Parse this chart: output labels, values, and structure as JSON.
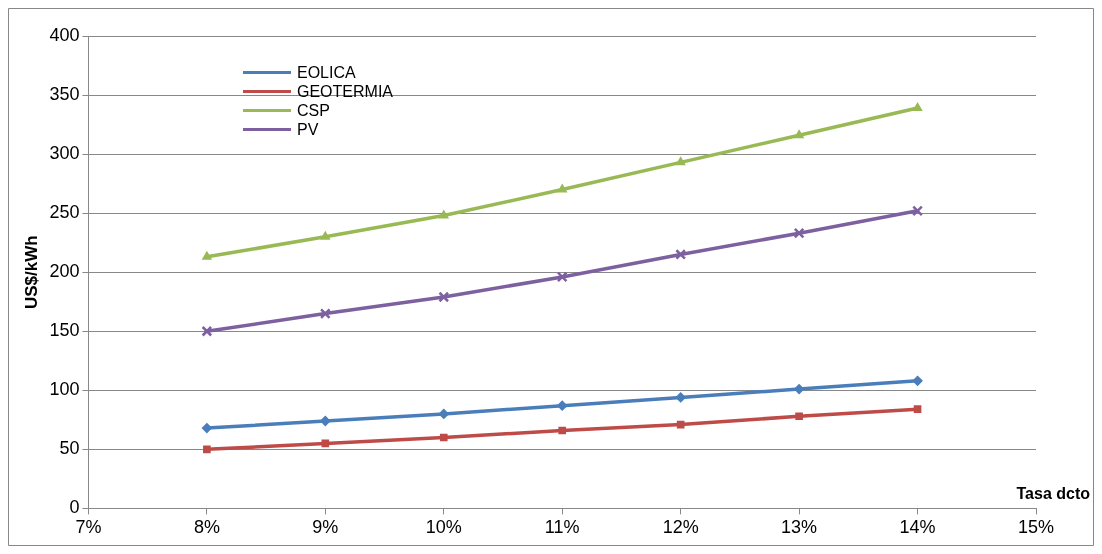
{
  "chart_data": {
    "type": "line",
    "xlabel": "Tasa dcto",
    "ylabel": "US$/kWh",
    "x": [
      8,
      9,
      10,
      11,
      12,
      13,
      14
    ],
    "xlim": [
      7,
      15
    ],
    "xticks": [
      {
        "value": 7,
        "label": "7%"
      },
      {
        "value": 8,
        "label": "8%"
      },
      {
        "value": 9,
        "label": "9%"
      },
      {
        "value": 10,
        "label": "10%"
      },
      {
        "value": 11,
        "label": "11%"
      },
      {
        "value": 12,
        "label": "12%"
      },
      {
        "value": 13,
        "label": "13%"
      },
      {
        "value": 14,
        "label": "14%"
      },
      {
        "value": 15,
        "label": "15%"
      }
    ],
    "ylim": [
      0,
      400
    ],
    "yticks": [
      0,
      50,
      100,
      150,
      200,
      250,
      300,
      350,
      400
    ],
    "grid": "y",
    "legend": "top left",
    "series": [
      {
        "name": "EOLICA",
        "color": "#4a7ebb",
        "marker": "diamond",
        "values": [
          68,
          74,
          80,
          87,
          94,
          101,
          108
        ]
      },
      {
        "name": "GEOTERMIA",
        "color": "#be4b48",
        "marker": "square",
        "values": [
          50,
          55,
          60,
          66,
          71,
          78,
          84
        ]
      },
      {
        "name": "CSP",
        "color": "#98b954",
        "marker": "triangle",
        "values": [
          213,
          230,
          248,
          270,
          293,
          316,
          339
        ]
      },
      {
        "name": "PV",
        "color": "#7d60a0",
        "marker": "cross",
        "values": [
          150,
          165,
          179,
          196,
          215,
          233,
          252
        ]
      }
    ]
  }
}
